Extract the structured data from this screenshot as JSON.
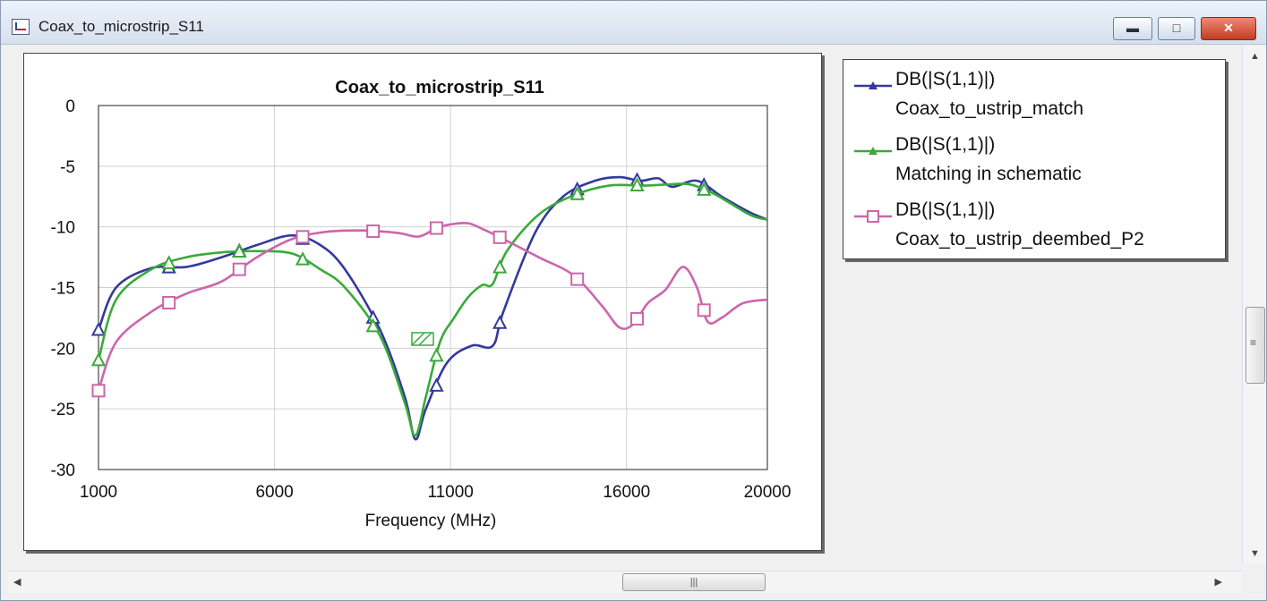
{
  "window": {
    "title": "Coax_to_microstrip_S11"
  },
  "colors": {
    "blue": "#343a9a",
    "green": "#3aaa3a",
    "pink": "#cc66aa"
  },
  "legend": [
    {
      "series": "DB(|S(1,1)|)",
      "label": "Coax_to_ustrip_match",
      "color": "#343a9a",
      "marker": "triangle"
    },
    {
      "series": "DB(|S(1,1)|)",
      "label": "Matching in schematic",
      "color": "#3aaa3a",
      "marker": "triangle"
    },
    {
      "series": "DB(|S(1,1)|)",
      "label": "Coax_to_ustrip_deembed_P2",
      "color": "#cc66aa",
      "marker": "square"
    }
  ],
  "chart_data": {
    "type": "line",
    "title": "Coax_to_microstrip_S11",
    "xlabel": "Frequency (MHz)",
    "ylabel": "",
    "xlim": [
      1000,
      20000
    ],
    "ylim": [
      -30,
      0
    ],
    "xticks": [
      "1000",
      "6000",
      "11000",
      "16000",
      "20000"
    ],
    "yticks": [
      "0",
      "-5",
      "-10",
      "-15",
      "-20",
      "-25",
      "-30"
    ],
    "grid": true,
    "legend_position": "right",
    "series": [
      {
        "name": "Coax_to_ustrip_match",
        "color": "#343a9a",
        "marker": "triangle",
        "x": [
          1000,
          1500,
          2500,
          3500,
          4500,
          5500,
          6500,
          7300,
          8000,
          9000,
          9700,
          10000,
          10300,
          10900,
          11600,
          12200,
          12500,
          13400,
          14200,
          15100,
          15800,
          16400,
          16900,
          17300,
          18000,
          18700,
          19500,
          20000
        ],
        "y": [
          -18.5,
          -15,
          -13.4,
          -13.3,
          -12.5,
          -11.5,
          -10.7,
          -11.5,
          -13.5,
          -18.5,
          -24,
          -27.5,
          -25,
          -21.2,
          -19.8,
          -19.8,
          -17,
          -10.5,
          -7.5,
          -6.2,
          -5.9,
          -6.2,
          -6,
          -6.7,
          -6.2,
          -7.5,
          -8.8,
          -9.4
        ],
        "markers": [
          1000,
          3000,
          5000,
          6800,
          8800,
          10600,
          12400,
          14600,
          16300,
          18200
        ]
      },
      {
        "name": "Matching in schematic",
        "color": "#3aaa3a",
        "marker": "triangle",
        "x": [
          1000,
          1500,
          2500,
          3500,
          4500,
          5500,
          6500,
          7300,
          8000,
          9000,
          9700,
          10000,
          10300,
          10700,
          11100,
          11500,
          11900,
          12200,
          12600,
          13500,
          14500,
          15500,
          16500,
          17200,
          17800,
          18500,
          19500,
          20000
        ],
        "y": [
          -21,
          -16,
          -13.5,
          -12.5,
          -12.1,
          -12,
          -12.2,
          -13.5,
          -15,
          -19,
          -24.5,
          -27.2,
          -24,
          -19.5,
          -17.5,
          -15.8,
          -14.8,
          -14.7,
          -12,
          -9,
          -7.4,
          -6.6,
          -6.6,
          -6.5,
          -6.5,
          -7.3,
          -9,
          -9.4
        ],
        "markers": [
          1000,
          3000,
          5000,
          6800,
          8800,
          10600,
          12400,
          14600,
          16300,
          18200
        ]
      },
      {
        "name": "Coax_to_ustrip_deembed_P2",
        "color": "#cc66aa",
        "marker": "square",
        "x": [
          1000,
          1500,
          2500,
          3500,
          4500,
          5500,
          6500,
          7500,
          8500,
          9500,
          10100,
          10600,
          11000,
          11500,
          12000,
          12500,
          13500,
          14500,
          15300,
          15800,
          16200,
          16600,
          17100,
          17600,
          18000,
          18300,
          18700,
          19300,
          20000
        ],
        "y": [
          -23.5,
          -19.5,
          -17,
          -15.5,
          -14.5,
          -12.5,
          -11,
          -10.4,
          -10.3,
          -10.5,
          -10.8,
          -10.1,
          -9.8,
          -9.7,
          -10.3,
          -11,
          -12.5,
          -14,
          -16.5,
          -18.3,
          -18,
          -16.3,
          -15.2,
          -13.3,
          -15,
          -17.8,
          -17.5,
          -16.3,
          -16
        ],
        "markers": [
          1000,
          3000,
          5000,
          6800,
          8800,
          10600,
          12400,
          14600,
          16300,
          18200
        ]
      }
    ]
  }
}
